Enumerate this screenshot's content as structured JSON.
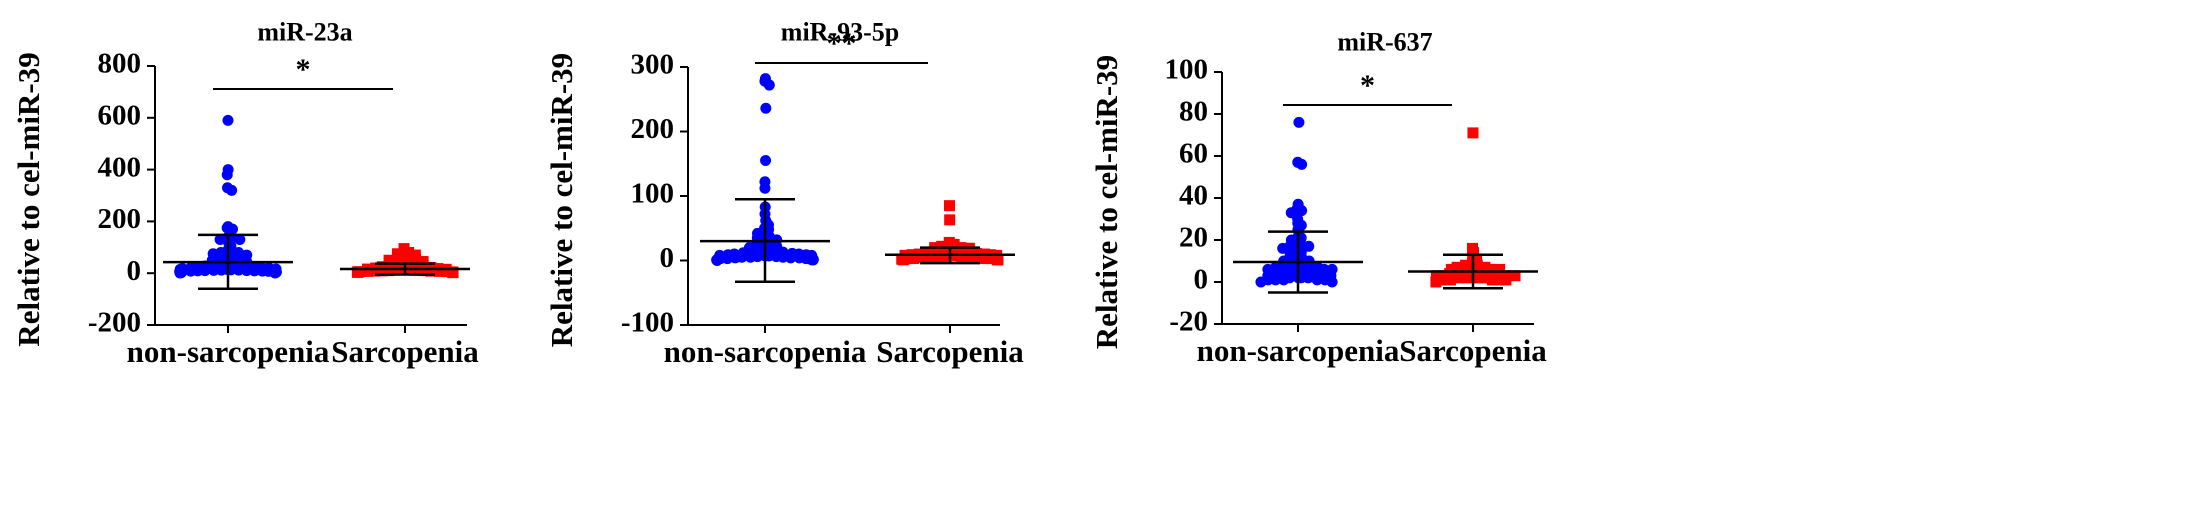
{
  "chart_data": [
    {
      "type": "scatter",
      "title": "miR-23a",
      "ylabel": "Relative to cel-miR-39",
      "ylim": [
        -200,
        800
      ],
      "yticks": [
        800,
        600,
        400,
        200,
        0,
        -200
      ],
      "yticklabels": [
        "800",
        "600",
        "400",
        "200",
        "0",
        "-200"
      ],
      "categories": [
        "non-sarcopenia",
        "Sarcopenia"
      ],
      "significance": "*",
      "series": [
        {
          "color": "#0000ff",
          "marker": "circle",
          "summary": {
            "mean": 43,
            "upper": 148,
            "lower": -60
          },
          "values": [
            590,
            400,
            380,
            330,
            320,
            180,
            175,
            170,
            140,
            135,
            130,
            130,
            120,
            105,
            90,
            85,
            80,
            80,
            75,
            70,
            65,
            60,
            55,
            50,
            50,
            45,
            40,
            40,
            35,
            35,
            30,
            30,
            28,
            25,
            25,
            22,
            20,
            20,
            18,
            16,
            15,
            14,
            13,
            12,
            12,
            11,
            10,
            10,
            9,
            9,
            8,
            8,
            7,
            7,
            6,
            6,
            5,
            5,
            5,
            4,
            4,
            4,
            3,
            3,
            3,
            2,
            2,
            2,
            1,
            1
          ]
        },
        {
          "color": "#ff0000",
          "marker": "square",
          "summary": {
            "mean": 16,
            "upper": 37,
            "lower": -5
          },
          "values": [
            95,
            80,
            75,
            70,
            68,
            65,
            60,
            55,
            50,
            45,
            40,
            38,
            35,
            32,
            30,
            28,
            25,
            22,
            20,
            18,
            16,
            15,
            14,
            13,
            12,
            11,
            10,
            10,
            9,
            8,
            8,
            7,
            7,
            6,
            6,
            5,
            5,
            4,
            4,
            3,
            3,
            2
          ]
        }
      ]
    },
    {
      "type": "scatter",
      "title": "miR-93-5p",
      "ylabel": "Relative to cel-miR-39",
      "ylim": [
        -100,
        300
      ],
      "yticks": [
        300,
        200,
        100,
        0,
        -100
      ],
      "yticklabels": [
        "300",
        "200",
        "100",
        "0",
        "-100"
      ],
      "categories": [
        "non-sarcopenia",
        "Sarcopenia"
      ],
      "significance": "**",
      "series": [
        {
          "color": "#0000ff",
          "marker": "circle",
          "summary": {
            "mean": 30,
            "upper": 95,
            "lower": -33
          },
          "values": [
            282,
            278,
            272,
            236,
            155,
            122,
            112,
            83,
            72,
            62,
            55,
            50,
            48,
            42,
            40,
            38,
            35,
            32,
            28,
            26,
            25,
            22,
            20,
            18,
            17,
            16,
            15,
            14,
            13,
            12,
            11,
            10,
            10,
            9,
            9,
            8,
            8,
            7,
            7,
            6,
            6,
            5,
            5,
            5,
            4,
            4,
            4,
            3,
            3,
            3,
            2,
            2,
            2,
            2,
            1,
            1,
            1,
            1,
            1,
            0
          ]
        },
        {
          "color": "#ff0000",
          "marker": "square",
          "summary": {
            "mean": 9,
            "upper": 20,
            "lower": -4
          },
          "values": [
            85,
            63,
            28,
            25,
            22,
            20,
            20,
            19,
            18,
            17,
            16,
            15,
            14,
            13,
            12,
            11,
            10,
            10,
            9,
            9,
            8,
            8,
            7,
            7,
            6,
            6,
            5,
            5,
            4,
            4,
            4,
            3,
            3,
            3,
            2,
            2,
            2,
            1,
            1,
            1
          ]
        }
      ]
    },
    {
      "type": "scatter",
      "title": "miR-637",
      "ylabel": "Relative to cel-miR-39",
      "ylim": [
        -20,
        100
      ],
      "yticks": [
        100,
        80,
        60,
        40,
        20,
        0,
        -20
      ],
      "yticklabels": [
        "100",
        "80",
        "60",
        "40",
        "20",
        "0",
        "-20"
      ],
      "categories": [
        "non-sarcopenia",
        "Sarcopenia"
      ],
      "significance": "*",
      "series": [
        {
          "color": "#0000ff",
          "marker": "circle",
          "summary": {
            "mean": 9.5,
            "upper": 24,
            "lower": -5
          },
          "values": [
            76,
            57,
            56,
            37,
            35,
            34,
            33,
            30,
            28,
            27,
            25,
            22,
            21,
            20,
            19,
            18,
            17,
            17,
            16,
            15,
            14,
            13,
            12,
            12,
            11,
            10,
            10,
            9,
            9,
            8,
            8,
            7,
            7,
            7,
            6,
            6,
            6,
            5,
            5,
            5,
            4,
            4,
            4,
            3,
            3,
            3,
            3,
            2,
            2,
            2,
            2,
            1,
            1,
            1,
            1,
            1,
            0,
            0
          ]
        },
        {
          "color": "#ff0000",
          "marker": "square",
          "summary": {
            "mean": 5,
            "upper": 13,
            "lower": -3
          },
          "values": [
            71,
            16,
            14,
            12,
            10,
            9,
            8,
            8,
            7,
            7,
            6,
            6,
            6,
            5,
            5,
            5,
            5,
            4,
            4,
            4,
            4,
            3,
            3,
            3,
            3,
            2,
            2,
            2,
            2,
            2,
            1,
            1,
            1,
            1,
            1,
            0
          ]
        }
      ]
    }
  ]
}
